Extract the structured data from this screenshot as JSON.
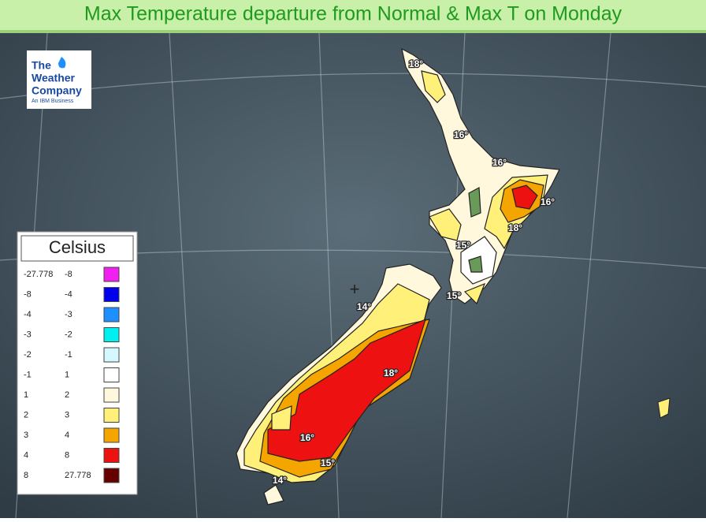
{
  "title": "Max Temperature departure from Normal & Max T on Monday",
  "logo": {
    "line1": "The",
    "line2": "Weather",
    "line3": "Company",
    "tagline": "An IBM Business"
  },
  "legend": {
    "title": "Celsius",
    "rows": [
      {
        "from": -27.778,
        "to": -8,
        "color": "#f020f0"
      },
      {
        "from": -8,
        "to": -4,
        "color": "#0000ee"
      },
      {
        "from": -4,
        "to": -3,
        "color": "#1e8fff"
      },
      {
        "from": -3,
        "to": -2,
        "color": "#00f0f0"
      },
      {
        "from": -2,
        "to": -1,
        "color": "#d4f8ff"
      },
      {
        "from": -1,
        "to": 1,
        "color": "#ffffff"
      },
      {
        "from": 1,
        "to": 2,
        "color": "#fff8dc"
      },
      {
        "from": 2,
        "to": 3,
        "color": "#fff07a"
      },
      {
        "from": 3,
        "to": 4,
        "color": "#f5a500"
      },
      {
        "from": 4,
        "to": 8,
        "color": "#ee1111"
      },
      {
        "from": 8,
        "to": 27.778,
        "color": "#660000"
      }
    ]
  },
  "map_labels": [
    "18°",
    "16°",
    "16°",
    "16°",
    "18°",
    "15°",
    "15°",
    "14°",
    "18°",
    "16°",
    "15°",
    "14°"
  ]
}
